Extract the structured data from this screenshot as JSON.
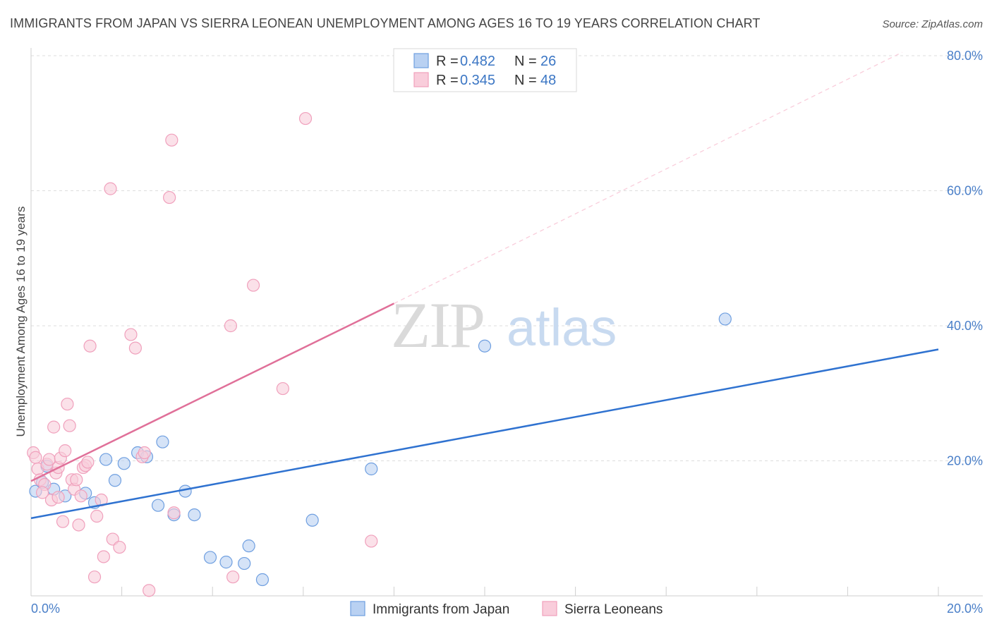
{
  "chart_data": {
    "type": "scatter",
    "title": "IMMIGRANTS FROM JAPAN VS SIERRA LEONEAN UNEMPLOYMENT AMONG AGES 16 TO 19 YEARS CORRELATION CHART",
    "source": "Source: ZipAtlas.com",
    "xlabel": "",
    "ylabel": "Unemployment Among Ages 16 to 19 years",
    "xlim": [
      0,
      20
    ],
    "ylim": [
      0,
      80
    ],
    "y_ticks": [
      20,
      40,
      60,
      80
    ],
    "y_tick_labels": [
      "20.0%",
      "40.0%",
      "60.0%",
      "80.0%"
    ],
    "x_tick_labels": [
      "0.0%",
      "20.0%"
    ],
    "grid": true,
    "watermark": {
      "zip": "ZIP",
      "atlas": "atlas"
    },
    "legend": {
      "r_label": "R =",
      "n_label": "N =",
      "entries": [
        {
          "r": "0.482",
          "n": "26"
        },
        {
          "r": "0.345",
          "n": "48"
        }
      ]
    },
    "series": [
      {
        "name": "Immigrants from Japan",
        "color": "#6f9fe0",
        "fill": "#b9d1f2",
        "line_color": "#2f72d0",
        "trend": {
          "x0": 0,
          "y0": 11.5,
          "x1": 20,
          "y1": 36.5
        },
        "points": [
          {
            "x": 0.1,
            "y": 15.5
          },
          {
            "x": 0.25,
            "y": 16.8
          },
          {
            "x": 0.35,
            "y": 19.2
          },
          {
            "x": 0.5,
            "y": 15.8
          },
          {
            "x": 0.75,
            "y": 14.8
          },
          {
            "x": 1.2,
            "y": 15.2
          },
          {
            "x": 1.4,
            "y": 13.8
          },
          {
            "x": 1.65,
            "y": 20.2
          },
          {
            "x": 1.85,
            "y": 17.1
          },
          {
            "x": 2.05,
            "y": 19.6
          },
          {
            "x": 2.35,
            "y": 21.2
          },
          {
            "x": 2.55,
            "y": 20.6
          },
          {
            "x": 2.8,
            "y": 13.4
          },
          {
            "x": 2.9,
            "y": 22.8
          },
          {
            "x": 3.15,
            "y": 12.0
          },
          {
            "x": 3.4,
            "y": 15.5
          },
          {
            "x": 3.6,
            "y": 12.0
          },
          {
            "x": 3.95,
            "y": 5.7
          },
          {
            "x": 4.3,
            "y": 5.0
          },
          {
            "x": 4.7,
            "y": 4.8
          },
          {
            "x": 4.8,
            "y": 7.4
          },
          {
            "x": 5.1,
            "y": 2.4
          },
          {
            "x": 6.2,
            "y": 11.2
          },
          {
            "x": 7.5,
            "y": 18.8
          },
          {
            "x": 10.0,
            "y": 37.0
          },
          {
            "x": 15.3,
            "y": 41.0
          }
        ]
      },
      {
        "name": "Sierra Leoneans",
        "color": "#f0a0bc",
        "fill": "#f9cddb",
        "line_color": "#e07099",
        "trend": {
          "x0": 0,
          "y0": 17.0,
          "x1": 8,
          "y1": 43.3
        },
        "trend_ext": {
          "x0": 8,
          "y0": 43.3,
          "x1": 19.2,
          "y1": 80.5
        },
        "points": [
          {
            "x": 0.05,
            "y": 21.2
          },
          {
            "x": 0.1,
            "y": 20.5
          },
          {
            "x": 0.15,
            "y": 18.8
          },
          {
            "x": 0.2,
            "y": 17.2
          },
          {
            "x": 0.3,
            "y": 16.5
          },
          {
            "x": 0.35,
            "y": 19.5
          },
          {
            "x": 0.4,
            "y": 20.2
          },
          {
            "x": 0.45,
            "y": 14.2
          },
          {
            "x": 0.5,
            "y": 25.0
          },
          {
            "x": 0.55,
            "y": 18.2
          },
          {
            "x": 0.6,
            "y": 19.0
          },
          {
            "x": 0.65,
            "y": 20.4
          },
          {
            "x": 0.7,
            "y": 11.0
          },
          {
            "x": 0.75,
            "y": 21.5
          },
          {
            "x": 0.8,
            "y": 28.4
          },
          {
            "x": 0.85,
            "y": 25.2
          },
          {
            "x": 0.9,
            "y": 17.2
          },
          {
            "x": 0.95,
            "y": 15.8
          },
          {
            "x": 1.0,
            "y": 17.2
          },
          {
            "x": 1.05,
            "y": 10.5
          },
          {
            "x": 1.1,
            "y": 14.8
          },
          {
            "x": 1.15,
            "y": 19.0
          },
          {
            "x": 1.2,
            "y": 19.3
          },
          {
            "x": 1.25,
            "y": 19.8
          },
          {
            "x": 1.3,
            "y": 37.0
          },
          {
            "x": 1.4,
            "y": 2.8
          },
          {
            "x": 1.45,
            "y": 11.8
          },
          {
            "x": 1.55,
            "y": 14.2
          },
          {
            "x": 1.6,
            "y": 5.8
          },
          {
            "x": 1.75,
            "y": 60.3
          },
          {
            "x": 1.8,
            "y": 8.4
          },
          {
            "x": 1.95,
            "y": 7.2
          },
          {
            "x": 2.2,
            "y": 38.7
          },
          {
            "x": 2.3,
            "y": 36.7
          },
          {
            "x": 2.45,
            "y": 20.6
          },
          {
            "x": 2.5,
            "y": 21.2
          },
          {
            "x": 2.6,
            "y": 0.8
          },
          {
            "x": 3.05,
            "y": 59.0
          },
          {
            "x": 3.1,
            "y": 67.5
          },
          {
            "x": 3.15,
            "y": 12.3
          },
          {
            "x": 4.4,
            "y": 40.0
          },
          {
            "x": 4.45,
            "y": 2.8
          },
          {
            "x": 4.9,
            "y": 46.0
          },
          {
            "x": 5.55,
            "y": 30.7
          },
          {
            "x": 6.05,
            "y": 70.7
          },
          {
            "x": 7.5,
            "y": 8.1
          },
          {
            "x": 0.25,
            "y": 15.3
          },
          {
            "x": 0.6,
            "y": 14.6
          }
        ]
      }
    ]
  }
}
